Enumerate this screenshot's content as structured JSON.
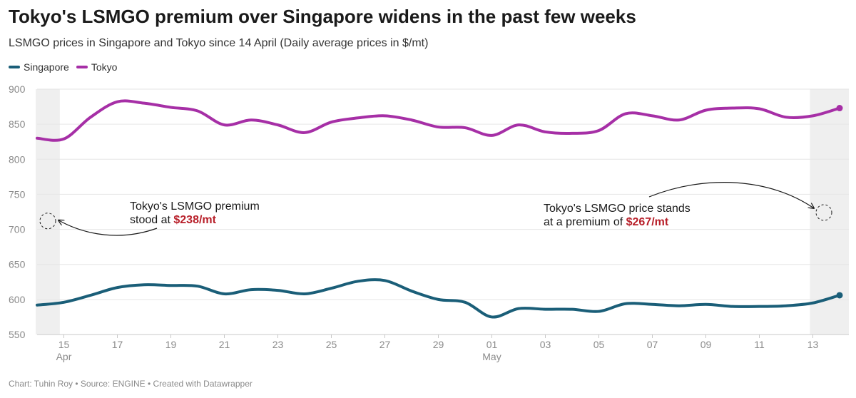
{
  "header": {
    "title": "Tokyo's LSMGO premium over Singapore widens in the past few weeks",
    "subtitle": "LSMGO prices in Singapore and Tokyo since 14 April (Daily average prices in $/mt)"
  },
  "colors": {
    "singapore": "#1a5e78",
    "tokyo": "#a62fa6",
    "highlight_band": "#efefef",
    "gridline": "#e6e6e6",
    "annotation_highlight": "#b8202a"
  },
  "chart_data": {
    "type": "line",
    "x": [
      "2024-04-14",
      "2024-04-15",
      "2024-04-16",
      "2024-04-17",
      "2024-04-18",
      "2024-04-19",
      "2024-04-20",
      "2024-04-21",
      "2024-04-22",
      "2024-04-23",
      "2024-04-24",
      "2024-04-25",
      "2024-04-26",
      "2024-04-27",
      "2024-04-28",
      "2024-04-29",
      "2024-04-30",
      "2024-05-01",
      "2024-05-02",
      "2024-05-03",
      "2024-05-04",
      "2024-05-05",
      "2024-05-06",
      "2024-05-07",
      "2024-05-08",
      "2024-05-09",
      "2024-05-10",
      "2024-05-11",
      "2024-05-12",
      "2024-05-13",
      "2024-05-14"
    ],
    "series": [
      {
        "name": "Singapore",
        "color": "#1a5e78",
        "values": [
          592,
          596,
          606,
          617,
          621,
          620,
          619,
          608,
          614,
          613,
          608,
          616,
          626,
          627,
          612,
          600,
          596,
          575,
          587,
          586,
          586,
          583,
          594,
          593,
          591,
          593,
          590,
          590,
          591,
          595,
          606
        ]
      },
      {
        "name": "Tokyo",
        "color": "#a62fa6",
        "values": [
          830,
          829,
          860,
          882,
          880,
          874,
          869,
          849,
          856,
          849,
          838,
          853,
          859,
          862,
          856,
          846,
          845,
          834,
          849,
          839,
          837,
          841,
          865,
          862,
          856,
          870,
          873,
          872,
          860,
          862,
          873
        ]
      }
    ],
    "ylim": [
      550,
      900
    ],
    "yticks": [
      550,
      600,
      650,
      700,
      750,
      800,
      850,
      900
    ],
    "xtick_labels": [
      "15",
      "17",
      "19",
      "21",
      "23",
      "25",
      "27",
      "29",
      "01",
      "03",
      "05",
      "07",
      "09",
      "11",
      "13"
    ],
    "month_labels": [
      {
        "label": "Apr",
        "date": "2024-04-15"
      },
      {
        "label": "May",
        "date": "2024-05-01"
      }
    ],
    "highlight_ranges": [
      [
        "2024-04-14",
        "2024-04-15"
      ],
      [
        "2024-05-13",
        "2024-05-14"
      ]
    ],
    "grid": true,
    "legend": "top-left",
    "annotations": [
      {
        "text_before": "Tokyo's LSMGO premium",
        "text_mid": "stood at ",
        "highlight": "$238/mt",
        "date": "2024-04-14",
        "value": 712
      },
      {
        "text_before": "Tokyo's LSMGO price stands",
        "text_mid": "at a premium of ",
        "highlight": "$267/mt",
        "date": "2024-05-14",
        "value": 724
      }
    ]
  },
  "footer": "Chart: Tuhin Roy • Source: ENGINE • Created with Datawrapper"
}
